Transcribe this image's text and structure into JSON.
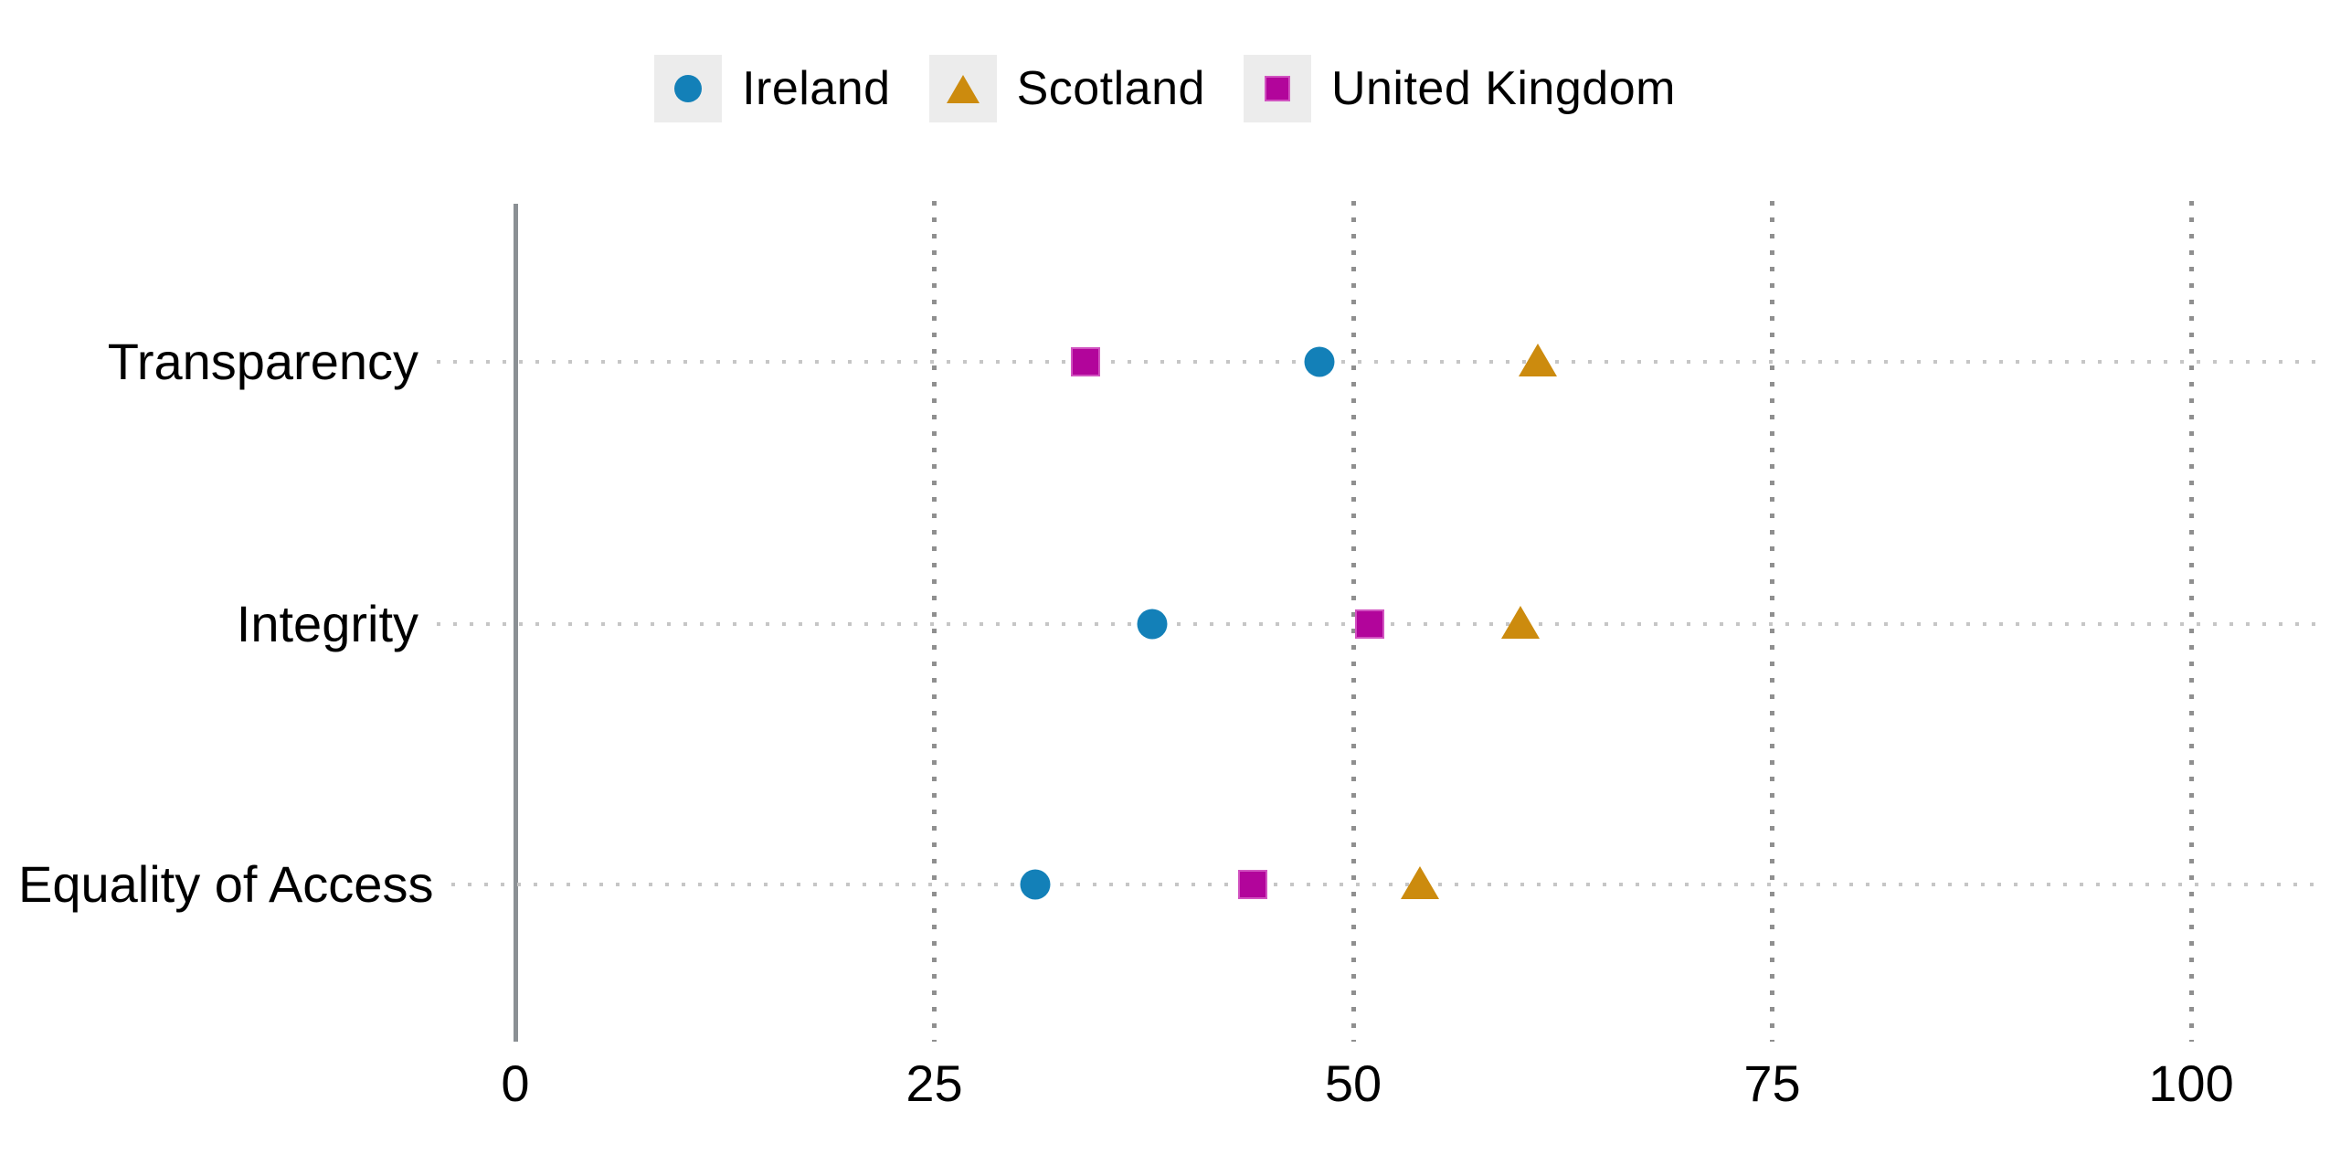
{
  "chart_data": {
    "type": "scatter",
    "subtype": "dot-plot",
    "orientation": "horizontal",
    "title": "",
    "xlabel": "",
    "ylabel": "",
    "categories": [
      "Transparency",
      "Integrity",
      "Equality of Access"
    ],
    "series": [
      {
        "name": "Ireland",
        "marker": "circle",
        "color": "#1380b8",
        "values": [
          48,
          38,
          31
        ]
      },
      {
        "name": "Scotland",
        "marker": "triangle",
        "color": "#cc8b0e",
        "values": [
          61,
          60,
          54
        ]
      },
      {
        "name": "United Kingdom",
        "marker": "square",
        "color": "#b2059b",
        "values": [
          34,
          51,
          44
        ]
      }
    ],
    "xlim": [
      0,
      100
    ],
    "x_tick_labels": [
      "0",
      "25",
      "50",
      "75",
      "100"
    ],
    "x_tick_values": [
      0,
      25,
      50,
      75,
      100
    ],
    "grid": "dotted vertical gridlines at x ticks, dotted horizontal leader lines at each category",
    "legend_position": "top-center"
  },
  "colors": {
    "background": "#ffffff",
    "text": "#000000",
    "axis_line": "#8b9094",
    "vertical_grid_dots": "#8f8f8f",
    "horizontal_grid_dots": "#c6c6c6",
    "legend_key_background": "#ececec",
    "square_marker_edge": "#d153c0"
  },
  "legend": {
    "items": [
      {
        "label": "Ireland",
        "icon": "circle-marker-icon"
      },
      {
        "label": "Scotland",
        "icon": "triangle-marker-icon"
      },
      {
        "label": "United Kingdom",
        "icon": "square-marker-icon"
      }
    ]
  }
}
